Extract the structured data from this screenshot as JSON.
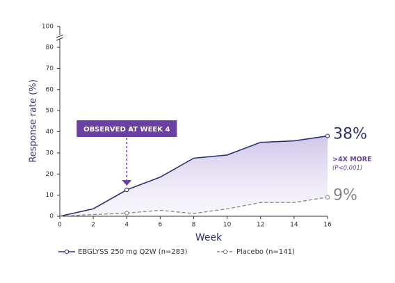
{
  "chart_data": {
    "type": "line",
    "x": [
      0,
      2,
      4,
      6,
      8,
      10,
      12,
      14,
      16
    ],
    "xlim": [
      0,
      16
    ],
    "xticks": [
      0,
      2,
      4,
      6,
      8,
      10,
      12,
      14,
      16
    ],
    "ylim": [
      0,
      100
    ],
    "yticks": [
      0,
      10,
      20,
      30,
      40,
      50,
      60,
      70,
      80,
      100
    ],
    "y_break": [
      80,
      100
    ],
    "xlabel": "Week",
    "ylabel": "Response rate (%)",
    "series": [
      {
        "name": "EBGLYSS 250 mg Q2W (n=283)",
        "color": "#2e3170",
        "style": "solid",
        "values": [
          0,
          3.5,
          12.5,
          18.5,
          27.5,
          29,
          35,
          35.7,
          38
        ],
        "value_labels": [
          null,
          null,
          null,
          null,
          null,
          null,
          null,
          null,
          "38%"
        ]
      },
      {
        "name": "Placebo (n=141)",
        "color": "#858585",
        "style": "dashed",
        "values": [
          0,
          0.8,
          1.5,
          2.8,
          1.3,
          3.5,
          6.5,
          6.5,
          9
        ],
        "value_labels": [
          null,
          null,
          null,
          null,
          null,
          null,
          null,
          null,
          "9%"
        ]
      }
    ],
    "marker_x": [
      4,
      16
    ],
    "shade_between": true,
    "legend": "bottom",
    "annotations": {
      "callout": "OBSERVED AT WEEK 4",
      "callout_x": 4,
      "difference": ">4X MORE",
      "p_value": "(P<0.001)"
    }
  }
}
